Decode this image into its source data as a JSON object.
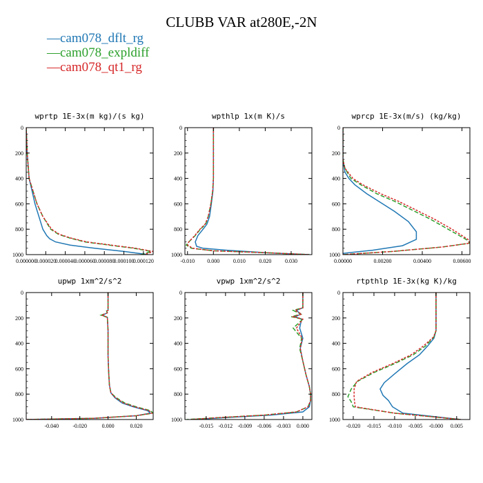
{
  "figure": {
    "title": "CLUBB VAR at280E,-2N",
    "legend": [
      {
        "label": "cam078_dflt_rg",
        "color": "#1f77b4"
      },
      {
        "label": "cam078_expldiff",
        "color": "#2ca02c"
      },
      {
        "label": "cam078_qt1_rg",
        "color": "#d62728"
      }
    ]
  },
  "chart_data": [
    {
      "type": "line",
      "title": "wprtp  1E-3x(m kg)/(s kg)",
      "xlim": [
        0,
        0.00013
      ],
      "ylim": [
        1000,
        0
      ],
      "xticks": [
        0,
        2e-05,
        4e-05,
        6e-05,
        8e-05,
        0.0001,
        0.00012
      ],
      "xtick_labels": [
        "0.000000",
        "0.000020",
        "0.000040",
        "0.000060",
        "0.000080",
        "0.000100",
        "0.000120"
      ],
      "yticks": [
        0,
        200,
        400,
        600,
        800,
        1000
      ],
      "ytick_labels": [
        "0",
        "200",
        "400",
        "600",
        "800",
        "1000"
      ],
      "series": [
        {
          "name": "cam078_dflt_rg",
          "color": "#1f77b4",
          "dash": "solid",
          "x": [
            0,
            1e-06,
            3e-06,
            6e-06,
            9e-06,
            1.3e-05,
            1.7e-05,
            2.1e-05,
            2.4e-05,
            3e-05,
            4.5e-05,
            7e-05,
            0.0001,
            0.000125
          ],
          "y": [
            0,
            200,
            400,
            500,
            600,
            700,
            800,
            850,
            875,
            900,
            925,
            950,
            975,
            1000
          ]
        },
        {
          "name": "cam078_expldiff",
          "color": "#2ca02c",
          "dash": "dash",
          "x": [
            0,
            1e-06,
            3e-06,
            7e-06,
            1.1e-05,
            1.7e-05,
            2.5e-05,
            3.3e-05,
            4.5e-05,
            6e-05,
            8.5e-05,
            0.00011,
            0.000128,
            0.000118
          ],
          "y": [
            0,
            200,
            400,
            500,
            600,
            700,
            800,
            840,
            870,
            900,
            925,
            950,
            975,
            1000
          ]
        },
        {
          "name": "cam078_qt1_rg",
          "color": "#d62728",
          "dash": "dash2",
          "x": [
            0,
            1e-06,
            3e-06,
            7e-06,
            1.1e-05,
            1.7e-05,
            2.6e-05,
            3.4e-05,
            4.6e-05,
            6.2e-05,
            8.7e-05,
            0.000112,
            0.00013,
            0.000121
          ],
          "y": [
            0,
            200,
            400,
            500,
            600,
            700,
            800,
            840,
            870,
            900,
            925,
            950,
            975,
            1000
          ]
        }
      ]
    },
    {
      "type": "line",
      "title": "wpthlp  1x(m K)/s",
      "xlim": [
        -0.011,
        0.038
      ],
      "ylim": [
        1000,
        0
      ],
      "xticks": [
        -0.01,
        0,
        0.01,
        0.02,
        0.03
      ],
      "xtick_labels": [
        "-0.010",
        "0.000",
        "0.010",
        "0.020",
        "0.030"
      ],
      "yticks": [
        0,
        200,
        400,
        600,
        800,
        1000
      ],
      "ytick_labels": [
        "0",
        "200",
        "400",
        "600",
        "800",
        "1000"
      ],
      "series": [
        {
          "name": "cam078_dflt_rg",
          "color": "#1f77b4",
          "dash": "solid",
          "x": [
            0,
            0,
            0,
            -0.0002,
            -0.0008,
            -0.0015,
            -0.0025,
            -0.004,
            -0.006,
            -0.007,
            -0.0065,
            -0.004,
            0.005,
            0.02,
            0.037
          ],
          "y": [
            0,
            200,
            400,
            500,
            600,
            700,
            760,
            800,
            850,
            900,
            935,
            950,
            965,
            985,
            1000
          ]
        },
        {
          "name": "cam078_expldiff",
          "color": "#2ca02c",
          "dash": "dash",
          "x": [
            0,
            0,
            0,
            -0.0003,
            -0.001,
            -0.002,
            -0.003,
            -0.005,
            -0.007,
            -0.0095,
            -0.0105,
            -0.0085,
            0,
            0.02,
            0.037
          ],
          "y": [
            0,
            200,
            400,
            500,
            600,
            700,
            760,
            800,
            850,
            900,
            925,
            950,
            970,
            985,
            1000
          ]
        },
        {
          "name": "cam078_qt1_rg",
          "color": "#d62728",
          "dash": "dash2",
          "x": [
            0,
            0,
            0,
            -0.0003,
            -0.001,
            -0.002,
            -0.0032,
            -0.0052,
            -0.0072,
            -0.0095,
            -0.01,
            -0.008,
            0,
            0.02,
            0.037
          ],
          "y": [
            0,
            200,
            400,
            500,
            600,
            700,
            760,
            800,
            850,
            900,
            925,
            950,
            970,
            985,
            1000
          ]
        }
      ]
    },
    {
      "type": "line",
      "title": "wprcp  1E-3x(m/s) (kg/kg)",
      "xlim": [
        0,
        0.0064
      ],
      "ylim": [
        1000,
        0
      ],
      "xticks": [
        0,
        0.002,
        0.004,
        0.006
      ],
      "xtick_labels": [
        "0.00000",
        "0.00200",
        "0.00400",
        "0.00600"
      ],
      "yticks": [
        0,
        200,
        400,
        600,
        800,
        1000
      ],
      "ytick_labels": [
        "0",
        "200",
        "400",
        "600",
        "800",
        "1000"
      ],
      "series": [
        {
          "name": "cam078_dflt_rg",
          "color": "#1f77b4",
          "dash": "solid",
          "x": [
            0,
            0,
            0.0001,
            0.0003,
            0.0006,
            0.0012,
            0.0018,
            0.0026,
            0.0033,
            0.0037,
            0.0037,
            0.003,
            0.0015,
            0
          ],
          "y": [
            0,
            250,
            350,
            400,
            450,
            520,
            580,
            660,
            740,
            820,
            880,
            930,
            965,
            990
          ]
        },
        {
          "name": "cam078_expldiff",
          "color": "#2ca02c",
          "dash": "dash",
          "x": [
            0,
            0,
            0.0001,
            0.0004,
            0.0009,
            0.0017,
            0.0026,
            0.0035,
            0.0044,
            0.0053,
            0.0062,
            0.0064,
            0.005,
            0.0025,
            0
          ],
          "y": [
            0,
            250,
            320,
            400,
            450,
            520,
            580,
            650,
            720,
            800,
            880,
            910,
            940,
            975,
            1000
          ]
        },
        {
          "name": "cam078_qt1_rg",
          "color": "#d62728",
          "dash": "dash2",
          "x": [
            0,
            0,
            0.0001,
            0.0005,
            0.001,
            0.0019,
            0.0028,
            0.0037,
            0.0046,
            0.0055,
            0.0063,
            0.0064,
            0.005,
            0.0025,
            0
          ],
          "y": [
            0,
            250,
            320,
            400,
            450,
            520,
            580,
            650,
            720,
            800,
            880,
            910,
            940,
            975,
            1000
          ]
        }
      ]
    },
    {
      "type": "line",
      "title": "upwp  1xm^2/s^2",
      "xlim": [
        -0.058,
        0.032
      ],
      "ylim": [
        1000,
        0
      ],
      "xticks": [
        -0.04,
        -0.02,
        0,
        0.02
      ],
      "xtick_labels": [
        "-0.040",
        "-0.020",
        "0.000",
        "0.020"
      ],
      "yticks": [
        0,
        200,
        400,
        600,
        800,
        1000
      ],
      "ytick_labels": [
        "0",
        "200",
        "400",
        "600",
        "800",
        "1000"
      ],
      "series": [
        {
          "name": "cam078_dflt_rg",
          "color": "#1f77b4",
          "dash": "solid",
          "x": [
            0,
            0,
            -0.001,
            -0.0005,
            -0.004,
            -0.0005,
            0,
            0,
            0.0005,
            0.001,
            0.002,
            0.005,
            0.01,
            0.018,
            0.028,
            0.03,
            0.02,
            -0.01,
            -0.058
          ],
          "y": [
            0,
            140,
            145,
            160,
            178,
            195,
            300,
            500,
            640,
            730,
            790,
            830,
            870,
            900,
            930,
            950,
            970,
            990,
            1000
          ]
        },
        {
          "name": "cam078_expldiff",
          "color": "#2ca02c",
          "dash": "dash",
          "x": [
            0,
            0,
            -0.001,
            -0.0005,
            -0.005,
            -0.0005,
            0,
            0,
            0.0005,
            0.001,
            0.002,
            0.006,
            0.012,
            0.02,
            0.03,
            0.032,
            0.02,
            -0.01,
            -0.058
          ],
          "y": [
            0,
            140,
            145,
            160,
            178,
            195,
            300,
            500,
            640,
            730,
            790,
            830,
            870,
            900,
            930,
            950,
            970,
            990,
            1000
          ]
        },
        {
          "name": "cam078_qt1_rg",
          "color": "#d62728",
          "dash": "dash2",
          "x": [
            0,
            0,
            -0.001,
            -0.0005,
            -0.0045,
            -0.0005,
            0,
            0,
            0.0005,
            0.001,
            0.002,
            0.0055,
            0.011,
            0.019,
            0.029,
            0.031,
            0.02,
            -0.01,
            -0.058
          ],
          "y": [
            0,
            140,
            145,
            160,
            178,
            195,
            300,
            500,
            640,
            730,
            790,
            830,
            870,
            900,
            930,
            950,
            970,
            990,
            1000
          ]
        }
      ]
    },
    {
      "type": "line",
      "title": "vpwp  1xm^2/s^2",
      "xlim": [
        -0.0183,
        0.0014
      ],
      "ylim": [
        1000,
        0
      ],
      "xticks": [
        -0.015,
        -0.012,
        -0.009,
        -0.006,
        -0.003,
        0
      ],
      "xtick_labels": [
        "-0.015",
        "-0.012",
        "-0.009",
        "-0.006",
        "-0.003",
        "0.000"
      ],
      "yticks": [
        0,
        200,
        400,
        600,
        800,
        1000
      ],
      "ytick_labels": [
        "0",
        "200",
        "400",
        "600",
        "800",
        "1000"
      ],
      "series": [
        {
          "name": "cam078_dflt_rg",
          "color": "#1f77b4",
          "dash": "solid",
          "x": [
            0,
            0,
            -0.001,
            -0.0003,
            -0.0012,
            -0.0002,
            -0.0005,
            0,
            -0.0004,
            0,
            0.0005,
            0.001,
            0.0012,
            0.0012,
            0.001,
            0,
            -0.005,
            -0.012,
            -0.017
          ],
          "y": [
            0,
            120,
            140,
            170,
            190,
            210,
            280,
            360,
            440,
            540,
            650,
            740,
            800,
            850,
            900,
            940,
            965,
            985,
            1000
          ]
        },
        {
          "name": "cam078_expldiff",
          "color": "#2ca02c",
          "dash": "dash",
          "x": [
            0,
            0,
            -0.0015,
            -0.0003,
            -0.0018,
            0,
            -0.0015,
            -0.0002,
            -0.0005,
            0,
            0.0005,
            0.001,
            0.0012,
            0.0012,
            0.0008,
            -0.001,
            -0.006,
            -0.013,
            -0.018
          ],
          "y": [
            0,
            120,
            140,
            170,
            190,
            210,
            280,
            360,
            440,
            540,
            650,
            740,
            800,
            850,
            900,
            940,
            965,
            985,
            1000
          ]
        },
        {
          "name": "cam078_qt1_rg",
          "color": "#d62728",
          "dash": "dash2",
          "x": [
            0,
            0,
            -0.0012,
            -0.0002,
            -0.0015,
            0,
            -0.001,
            -0.0001,
            -0.0004,
            0,
            0.0005,
            0.001,
            0.0012,
            0.0012,
            0.0008,
            -0.001,
            -0.006,
            -0.013,
            -0.0175
          ],
          "y": [
            0,
            120,
            140,
            170,
            190,
            210,
            280,
            360,
            440,
            540,
            650,
            740,
            800,
            850,
            900,
            940,
            965,
            985,
            1000
          ]
        }
      ]
    },
    {
      "type": "line",
      "title": "rtpthlp  1E-3x(kg K)/kg",
      "xlim": [
        -0.0225,
        0.0082
      ],
      "ylim": [
        1000,
        0
      ],
      "xticks": [
        -0.02,
        -0.015,
        -0.01,
        -0.005,
        0,
        0.005
      ],
      "xtick_labels": [
        "-0.020",
        "-0.015",
        "-0.010",
        "-0.005",
        "-0.000",
        "0.005"
      ],
      "yticks": [
        0,
        200,
        400,
        600,
        800,
        1000
      ],
      "ytick_labels": [
        "0",
        "200",
        "400",
        "600",
        "800",
        "1000"
      ],
      "series": [
        {
          "name": "cam078_dflt_rg",
          "color": "#1f77b4",
          "dash": "solid",
          "x": [
            0,
            0,
            -0.0005,
            -0.002,
            -0.004,
            -0.007,
            -0.01,
            -0.0125,
            -0.0135,
            -0.0128,
            -0.0115,
            -0.0105,
            -0.008,
            0.006
          ],
          "y": [
            0,
            300,
            360,
            420,
            490,
            560,
            640,
            710,
            760,
            810,
            850,
            900,
            950,
            1000
          ]
        },
        {
          "name": "cam078_expldiff",
          "color": "#2ca02c",
          "dash": "dash",
          "x": [
            0,
            0,
            -0.0005,
            -0.0025,
            -0.0055,
            -0.01,
            -0.015,
            -0.019,
            -0.0205,
            -0.0213,
            -0.0205,
            -0.02,
            -0.01,
            0.006
          ],
          "y": [
            0,
            300,
            350,
            420,
            490,
            560,
            630,
            700,
            760,
            820,
            860,
            900,
            950,
            1000
          ]
        },
        {
          "name": "cam078_qt1_rg",
          "color": "#d62728",
          "dash": "dash2",
          "x": [
            0,
            0,
            -0.0006,
            -0.003,
            -0.006,
            -0.0105,
            -0.0155,
            -0.0192,
            -0.0198,
            -0.0198,
            -0.0197,
            -0.0195,
            -0.01,
            0.006
          ],
          "y": [
            0,
            300,
            350,
            420,
            490,
            560,
            630,
            700,
            760,
            820,
            860,
            900,
            950,
            1000
          ]
        }
      ]
    }
  ]
}
